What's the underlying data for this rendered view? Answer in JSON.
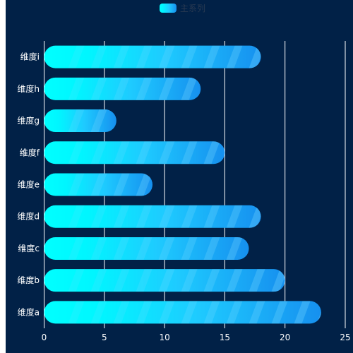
{
  "chart_data": {
    "type": "bar",
    "orientation": "horizontal",
    "legend": {
      "label": "主系列",
      "position": "top-center"
    },
    "categories": [
      "维度a",
      "维度b",
      "维度c",
      "维度d",
      "维度e",
      "维度f",
      "维度g",
      "维度h",
      "维度i"
    ],
    "series": [
      {
        "name": "主系列",
        "values": [
          23,
          20,
          17,
          18,
          9,
          15,
          6,
          13,
          18
        ]
      }
    ],
    "xlim": [
      0,
      25
    ],
    "xticks": [
      0,
      5,
      10,
      15,
      20,
      25
    ],
    "grid": "vertical",
    "colors": {
      "background": "#012147",
      "bar_start": "#00ffff",
      "bar_mid": "#1ecbff",
      "bar_end": "#1690ef",
      "stripe": "#3ab0f6",
      "grid": "#ffffff",
      "text": "#ffffff"
    }
  }
}
